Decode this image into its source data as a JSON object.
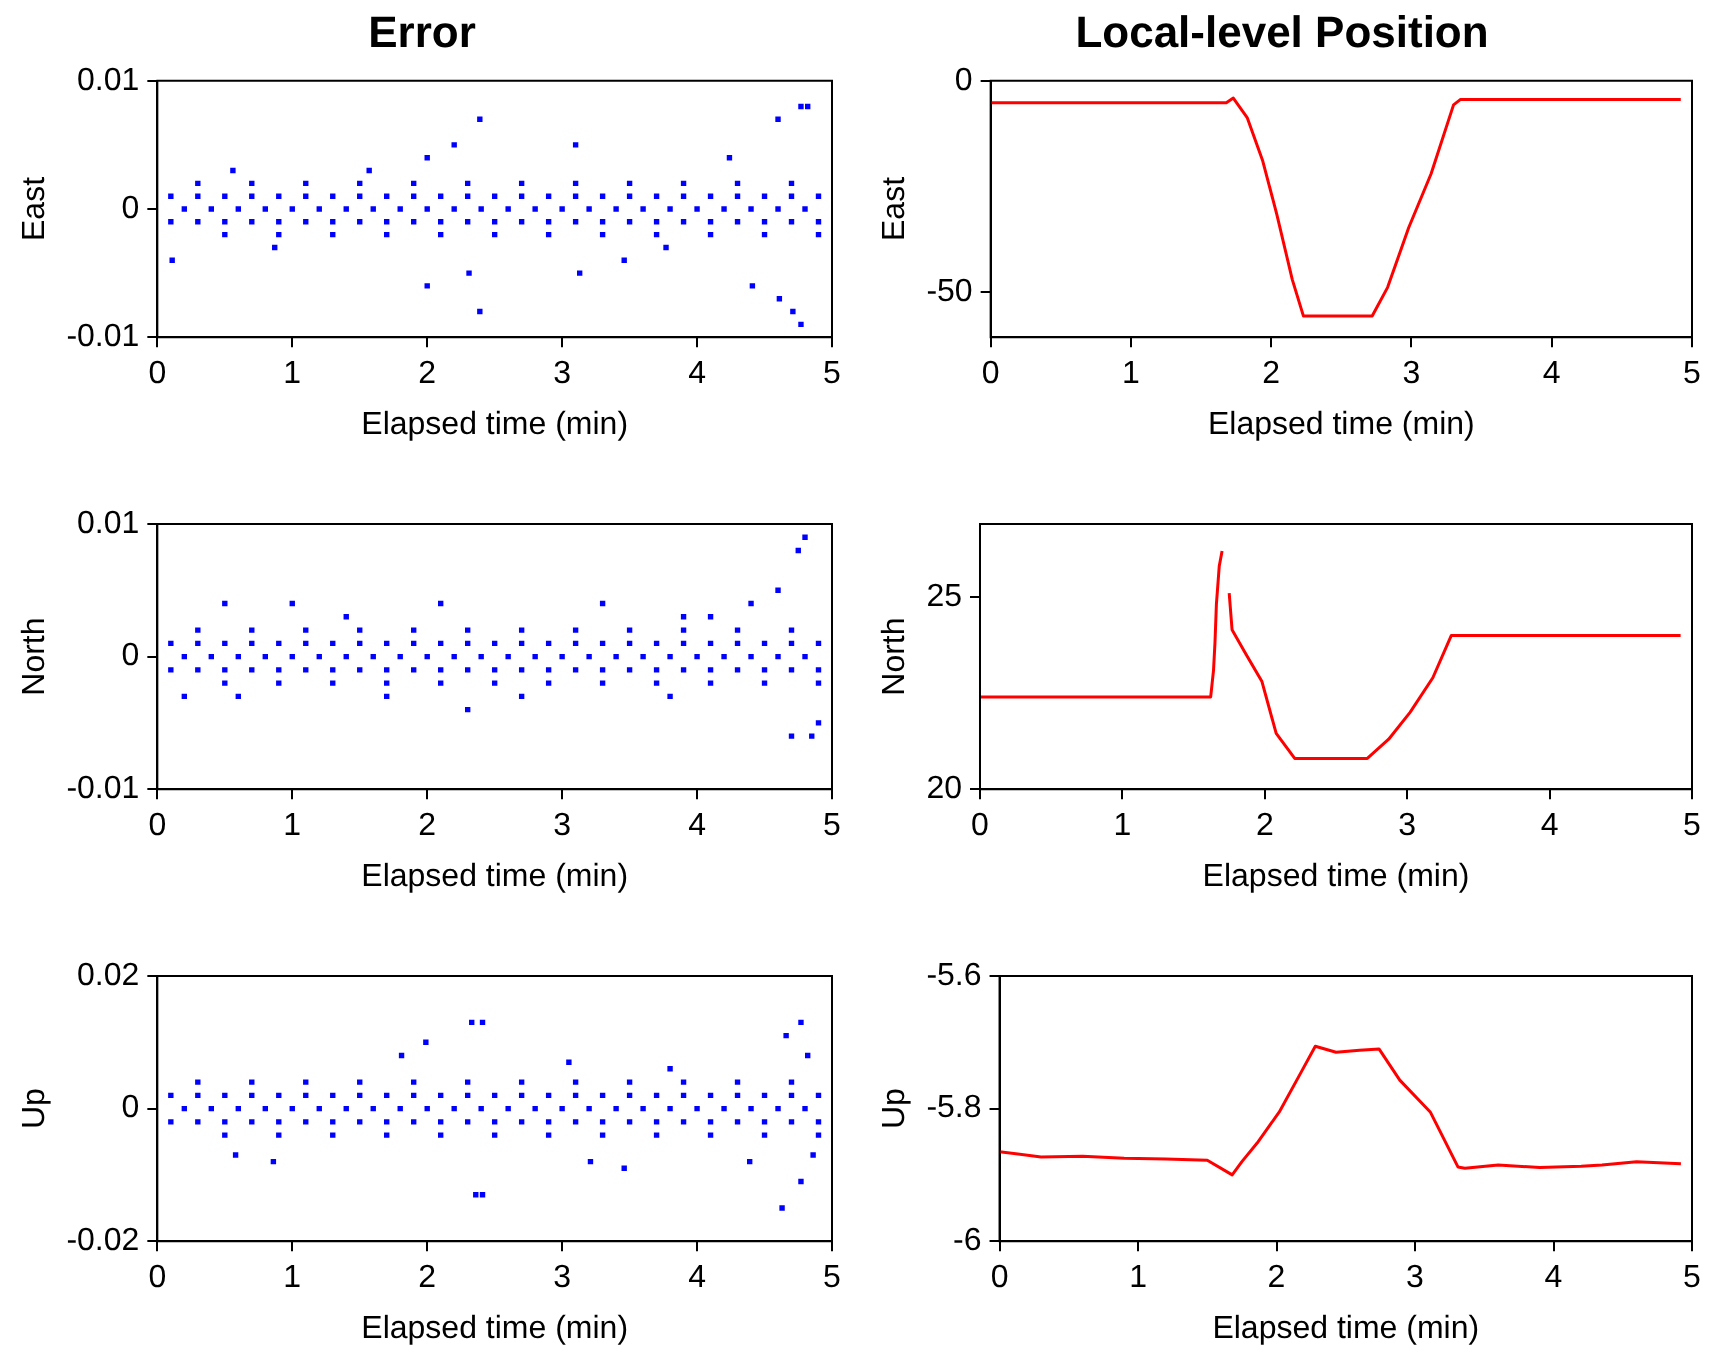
{
  "chart_data": [
    {
      "type": "scatter",
      "title": "Error",
      "xlabel": "Elapsed time (min)",
      "ylabel": "East",
      "xlim": [
        0,
        5
      ],
      "xticks": [
        0,
        1,
        2,
        3,
        4,
        5
      ],
      "ylim": [
        -0.01,
        0.01
      ],
      "yticks": [
        -0.01,
        0,
        0.01
      ],
      "marker": "square",
      "series": [
        {
          "color": "#0000ff",
          "x": [
            0.1,
            0.3,
            0.5,
            0.7,
            0.9,
            1.1,
            1.3,
            1.5,
            1.7,
            1.9,
            2.1,
            2.3,
            2.5,
            2.7,
            2.9,
            3.1,
            3.3,
            3.5,
            3.7,
            3.9,
            4.1,
            4.3,
            4.5,
            4.7,
            4.9,
            0.2,
            0.4,
            0.6,
            0.8,
            1.0,
            1.2,
            1.4,
            1.6,
            1.8,
            2.0,
            2.2,
            2.4,
            2.6,
            2.8,
            3.0,
            3.2,
            3.4,
            3.6,
            3.8,
            4.0,
            4.2,
            4.4,
            4.6,
            4.8,
            0.1,
            0.3,
            0.5,
            0.7,
            0.9,
            1.1,
            1.3,
            1.5,
            1.7,
            1.9,
            2.1,
            2.3,
            2.5,
            2.7,
            2.9,
            3.1,
            3.3,
            3.5,
            3.7,
            3.9,
            4.1,
            4.3,
            4.5,
            4.7,
            4.9,
            0.3,
            0.7,
            1.1,
            1.5,
            1.9,
            2.3,
            2.7,
            3.1,
            3.5,
            3.9,
            4.3,
            4.7,
            0.5,
            0.9,
            1.3,
            1.7,
            2.1,
            2.5,
            2.9,
            3.3,
            3.7,
            4.1,
            4.5,
            4.9,
            0.11,
            2.39,
            2.39,
            2.2,
            2.0,
            2.0,
            3.1,
            3.13,
            4.24,
            4.41,
            4.6,
            4.77,
            4.82,
            4.77,
            4.71,
            4.61,
            2.31,
            0.56,
            0.87,
            1.57,
            3.46,
            3.77
          ],
          "values": [
            0.001,
            0.001,
            0.001,
            0.001,
            0.001,
            0.001,
            0.001,
            0.001,
            0.001,
            0.001,
            0.001,
            0.001,
            0.001,
            0.001,
            0.001,
            0.001,
            0.001,
            0.001,
            0.001,
            0.001,
            0.001,
            0.001,
            0.001,
            0.001,
            0.001,
            0,
            0,
            0,
            0,
            0,
            0,
            0,
            0,
            0,
            0,
            0,
            0,
            0,
            0,
            0,
            0,
            0,
            0,
            0,
            0,
            0,
            0,
            0,
            0,
            -0.001,
            -0.001,
            -0.001,
            -0.001,
            -0.001,
            -0.001,
            -0.001,
            -0.001,
            -0.001,
            -0.001,
            -0.001,
            -0.001,
            -0.001,
            -0.001,
            -0.001,
            -0.001,
            -0.001,
            -0.001,
            -0.001,
            -0.001,
            -0.001,
            -0.001,
            -0.001,
            -0.001,
            -0.001,
            0.002,
            0.002,
            0.002,
            0.002,
            0.002,
            0.002,
            0.002,
            0.002,
            0.002,
            0.002,
            0.002,
            0.002,
            -0.002,
            -0.002,
            -0.002,
            -0.002,
            -0.002,
            -0.002,
            -0.002,
            -0.002,
            -0.002,
            -0.002,
            -0.002,
            -0.002,
            -0.004,
            0.007,
            -0.008,
            0.005,
            0.004,
            -0.006,
            0.005,
            -0.005,
            0.004,
            -0.006,
            0.007,
            0.008,
            0.008,
            -0.009,
            -0.008,
            -0.007,
            -0.005,
            0.003,
            -0.003,
            0.003,
            -0.004,
            -0.003
          ]
        }
      ]
    },
    {
      "type": "line",
      "title": "Local-level Position",
      "xlabel": "Elapsed time (min)",
      "ylabel": "East",
      "xlim": [
        0,
        5
      ],
      "xticks": [
        0,
        1,
        2,
        3,
        4,
        5
      ],
      "ylim": [
        -60.7,
        0
      ],
      "yticks": [
        -50,
        0
      ],
      "marker": "none",
      "line_style": "solid",
      "series": [
        {
          "color": "#ff0000",
          "x": [
            0,
            0.5,
            1.0,
            1.5,
            1.68,
            1.73,
            1.83,
            1.94,
            2.04,
            2.15,
            2.23,
            2.5,
            2.72,
            2.83,
            2.98,
            3.14,
            3.3,
            3.35,
            4.0,
            4.5,
            4.92
          ],
          "values": [
            -5.2,
            -5.2,
            -5.2,
            -5.2,
            -5.2,
            -4.1,
            -8.8,
            -19,
            -31.6,
            -47,
            -55.7,
            -55.7,
            -55.7,
            -48.9,
            -34.8,
            -22,
            -5.7,
            -4.4,
            -4.4,
            -4.4,
            -4.4
          ]
        }
      ]
    },
    {
      "type": "scatter",
      "xlabel": "Elapsed time (min)",
      "ylabel": "North",
      "xlim": [
        0,
        5
      ],
      "xticks": [
        0,
        1,
        2,
        3,
        4,
        5
      ],
      "ylim": [
        -0.01,
        0.01
      ],
      "yticks": [
        -0.01,
        0,
        0.01
      ],
      "marker": "square",
      "series": [
        {
          "color": "#0000ff",
          "x": [
            0.1,
            0.3,
            0.5,
            0.7,
            0.9,
            1.1,
            1.3,
            1.5,
            1.7,
            1.9,
            2.1,
            2.3,
            2.5,
            2.7,
            2.9,
            3.1,
            3.3,
            3.5,
            3.7,
            3.9,
            4.1,
            4.3,
            4.5,
            4.7,
            4.9,
            0.2,
            0.4,
            0.6,
            0.8,
            1.0,
            1.2,
            1.4,
            1.6,
            1.8,
            2.0,
            2.2,
            2.4,
            2.6,
            2.8,
            3.0,
            3.2,
            3.4,
            3.6,
            3.8,
            4.0,
            4.2,
            4.4,
            4.6,
            4.8,
            0.1,
            0.3,
            0.5,
            0.7,
            0.9,
            1.1,
            1.3,
            1.5,
            1.7,
            1.9,
            2.1,
            2.3,
            2.5,
            2.7,
            2.9,
            3.1,
            3.3,
            3.5,
            3.7,
            3.9,
            4.1,
            4.3,
            4.5,
            4.7,
            4.9,
            0.3,
            0.7,
            1.1,
            1.5,
            1.9,
            2.3,
            2.7,
            3.1,
            3.5,
            3.9,
            4.3,
            4.7,
            0.5,
            0.9,
            1.3,
            1.7,
            2.1,
            2.5,
            2.9,
            3.3,
            3.7,
            4.1,
            4.5,
            4.9,
            0.5,
            1.0,
            2.1,
            3.3,
            2.3,
            0.6,
            1.7,
            4.1,
            3.8,
            4.8,
            4.75,
            4.7,
            4.85,
            4.6,
            4.9,
            1.4,
            2.7,
            3.9,
            0.2,
            4.4
          ],
          "values": [
            0.001,
            0.001,
            0.001,
            0.001,
            0.001,
            0.001,
            0.001,
            0.001,
            0.001,
            0.001,
            0.001,
            0.001,
            0.001,
            0.001,
            0.001,
            0.001,
            0.001,
            0.001,
            0.001,
            0.001,
            0.001,
            0.001,
            0.001,
            0.001,
            0.001,
            0,
            0,
            0,
            0,
            0,
            0,
            0,
            0,
            0,
            0,
            0,
            0,
            0,
            0,
            0,
            0,
            0,
            0,
            0,
            0,
            0,
            0,
            0,
            0,
            -0.001,
            -0.001,
            -0.001,
            -0.001,
            -0.001,
            -0.001,
            -0.001,
            -0.001,
            -0.001,
            -0.001,
            -0.001,
            -0.001,
            -0.001,
            -0.001,
            -0.001,
            -0.001,
            -0.001,
            -0.001,
            -0.001,
            -0.001,
            -0.001,
            -0.001,
            -0.001,
            -0.001,
            -0.001,
            0.002,
            0.002,
            0.002,
            0.002,
            0.002,
            0.002,
            0.002,
            0.002,
            0.002,
            0.002,
            0.002,
            0.002,
            -0.002,
            -0.002,
            -0.002,
            -0.002,
            -0.002,
            -0.002,
            -0.002,
            -0.002,
            -0.002,
            -0.002,
            -0.002,
            -0.002,
            0.004,
            0.004,
            0.004,
            0.004,
            -0.004,
            -0.003,
            -0.003,
            0.003,
            -0.003,
            0.009,
            0.008,
            -0.006,
            -0.006,
            0.005,
            -0.005,
            0.003,
            -0.003,
            0.003,
            -0.003,
            0.004
          ]
        }
      ]
    },
    {
      "type": "line",
      "xlabel": "Elapsed time (min)",
      "ylabel": "North",
      "xlim": [
        0,
        5
      ],
      "xticks": [
        0,
        1,
        2,
        3,
        4,
        5
      ],
      "ylim": [
        20,
        26.9
      ],
      "yticks": [
        20,
        25
      ],
      "marker": "none",
      "line_style": "solid",
      "series": [
        {
          "color": "#ff0000",
          "x": [
            0,
            0.5,
            1.0,
            1.5,
            1.62,
            1.64,
            1.65,
            1.66,
            1.68,
            1.7,
            1.72,
            1.75,
            1.77,
            1.87,
            1.98,
            2.08,
            2.21,
            2.5,
            2.72,
            2.87,
            3.02,
            3.18,
            3.31,
            4.0,
            4.5,
            4.92
          ],
          "values": [
            22.4,
            22.4,
            22.4,
            22.4,
            22.4,
            23.1,
            23.8,
            24.8,
            25.8,
            26.2,
            null,
            25.1,
            24.15,
            23.5,
            22.8,
            21.45,
            20.8,
            20.8,
            20.8,
            21.3,
            22.0,
            22.9,
            24.0,
            24.0,
            24.0,
            24.0
          ]
        }
      ]
    },
    {
      "type": "scatter",
      "xlabel": "Elapsed time (min)",
      "ylabel": "Up",
      "xlim": [
        0,
        5
      ],
      "xticks": [
        0,
        1,
        2,
        3,
        4,
        5
      ],
      "ylim": [
        -0.02,
        0.02
      ],
      "yticks": [
        -0.02,
        0,
        0.02
      ],
      "marker": "square",
      "series": [
        {
          "color": "#0000ff",
          "x": [
            0.1,
            0.3,
            0.5,
            0.7,
            0.9,
            1.1,
            1.3,
            1.5,
            1.7,
            1.9,
            2.1,
            2.3,
            2.5,
            2.7,
            2.9,
            3.1,
            3.3,
            3.5,
            3.7,
            3.9,
            4.1,
            4.3,
            4.5,
            4.7,
            4.9,
            0.2,
            0.4,
            0.6,
            0.8,
            1.0,
            1.2,
            1.4,
            1.6,
            1.8,
            2.0,
            2.2,
            2.4,
            2.6,
            2.8,
            3.0,
            3.2,
            3.4,
            3.6,
            3.8,
            4.0,
            4.2,
            4.4,
            4.6,
            4.8,
            0.1,
            0.3,
            0.5,
            0.7,
            0.9,
            1.1,
            1.3,
            1.5,
            1.7,
            1.9,
            2.1,
            2.3,
            2.5,
            2.7,
            2.9,
            3.1,
            3.3,
            3.5,
            3.7,
            3.9,
            4.1,
            4.3,
            4.5,
            4.7,
            4.9,
            0.3,
            0.7,
            1.1,
            1.5,
            1.9,
            2.3,
            2.7,
            3.1,
            3.5,
            3.9,
            4.3,
            4.7,
            0.5,
            0.9,
            1.3,
            1.7,
            2.1,
            2.5,
            2.9,
            3.3,
            3.7,
            4.1,
            4.5,
            4.9,
            2.33,
            2.41,
            1.99,
            1.81,
            2.36,
            2.41,
            4.63,
            4.77,
            4.66,
            4.82,
            4.77,
            0.86,
            0.58,
            3.05,
            3.46,
            3.21,
            3.8,
            4.39,
            4.86
          ],
          "values": [
            0.002,
            0.002,
            0.002,
            0.002,
            0.002,
            0.002,
            0.002,
            0.002,
            0.002,
            0.002,
            0.002,
            0.002,
            0.002,
            0.002,
            0.002,
            0.002,
            0.002,
            0.002,
            0.002,
            0.002,
            0.002,
            0.002,
            0.002,
            0.002,
            0.002,
            0,
            0,
            0,
            0,
            0,
            0,
            0,
            0,
            0,
            0,
            0,
            0,
            0,
            0,
            0,
            0,
            0,
            0,
            0,
            0,
            0,
            0,
            0,
            0,
            -0.002,
            -0.002,
            -0.002,
            -0.002,
            -0.002,
            -0.002,
            -0.002,
            -0.002,
            -0.002,
            -0.002,
            -0.002,
            -0.002,
            -0.002,
            -0.002,
            -0.002,
            -0.002,
            -0.002,
            -0.002,
            -0.002,
            -0.002,
            -0.002,
            -0.002,
            -0.002,
            -0.002,
            -0.002,
            0.004,
            0.004,
            0.004,
            0.004,
            0.004,
            0.004,
            0.004,
            0.004,
            0.004,
            0.004,
            0.004,
            0.004,
            -0.004,
            -0.004,
            -0.004,
            -0.004,
            -0.004,
            -0.004,
            -0.004,
            -0.004,
            -0.004,
            -0.004,
            -0.004,
            -0.004,
            0.013,
            0.013,
            0.01,
            0.008,
            -0.013,
            -0.013,
            -0.015,
            0.013,
            0.011,
            0.008,
            -0.011,
            -0.008,
            -0.007,
            0.007,
            -0.009,
            -0.008,
            0.006,
            -0.008,
            -0.007
          ]
        }
      ]
    },
    {
      "type": "line",
      "xlabel": "Elapsed time (min)",
      "ylabel": "Up",
      "xlim": [
        0,
        5
      ],
      "xticks": [
        0,
        1,
        2,
        3,
        4,
        5
      ],
      "ylim": [
        -6,
        -5.6
      ],
      "yticks": [
        -6,
        -5.8,
        -5.6
      ],
      "marker": "none",
      "line_style": "solid",
      "series": [
        {
          "color": "#ff0000",
          "x": [
            0,
            0.3,
            0.6,
            0.9,
            1.2,
            1.5,
            1.68,
            1.75,
            1.86,
            2.02,
            2.17,
            2.28,
            2.43,
            2.6,
            2.74,
            2.89,
            3.11,
            3.31,
            3.36,
            3.6,
            3.9,
            4.2,
            4.35,
            4.6,
            4.92
          ],
          "values": [
            -5.865,
            -5.873,
            -5.872,
            -5.875,
            -5.876,
            -5.878,
            -5.9,
            -5.88,
            -5.852,
            -5.805,
            -5.748,
            -5.706,
            -5.715,
            -5.712,
            -5.71,
            -5.757,
            -5.805,
            -5.888,
            -5.89,
            -5.885,
            -5.889,
            -5.887,
            -5.885,
            -5.88,
            -5.883
          ]
        }
      ]
    }
  ]
}
